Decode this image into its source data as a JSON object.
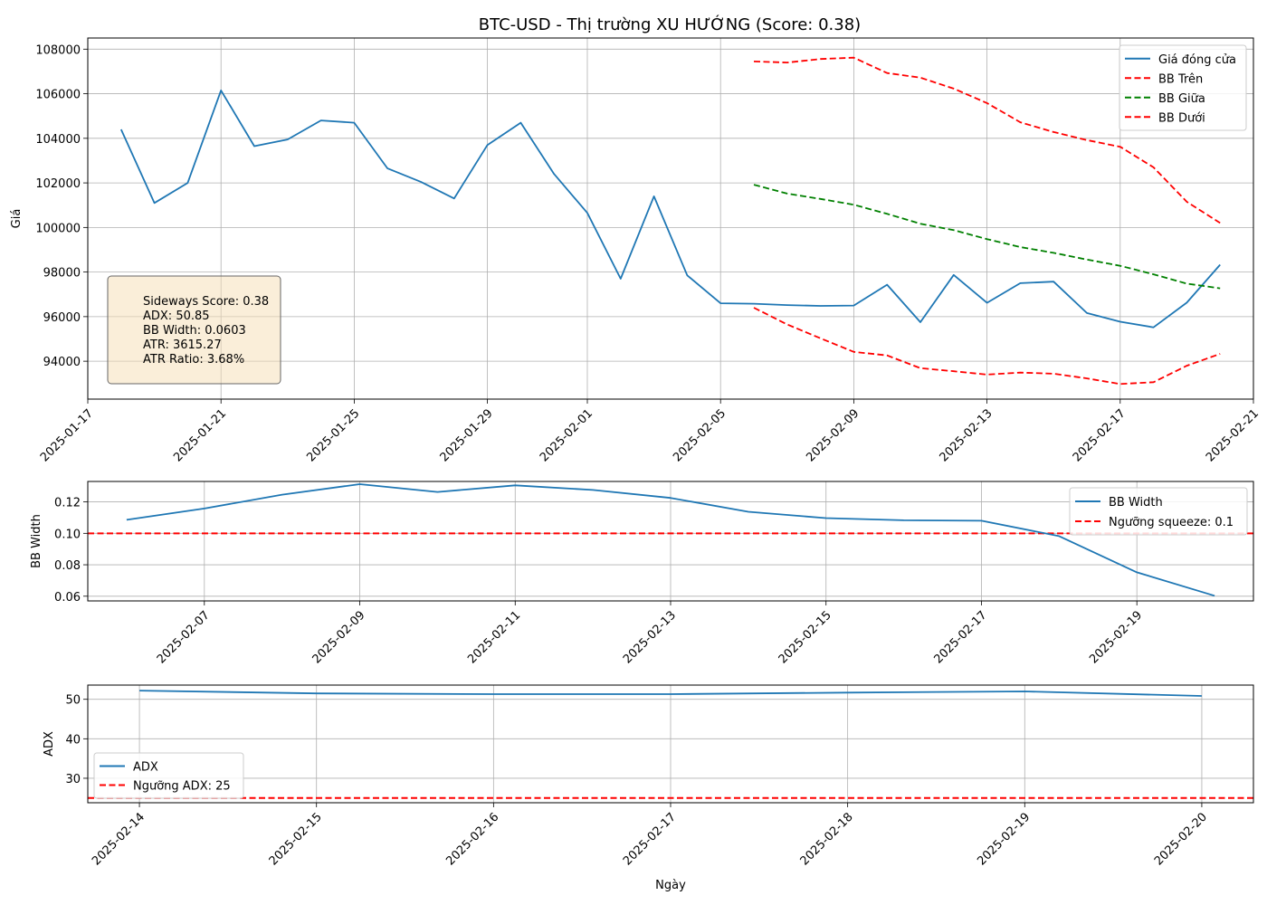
{
  "title": "BTC-USD - Thị trường XU HƯỚNG (Score: 0.38)",
  "colors": {
    "close": "#1f77b4",
    "upper": "#ff0000",
    "middle": "#008000",
    "lower": "#ff0000",
    "threshold": "#ff0000"
  },
  "chart_data": [
    {
      "type": "line",
      "ylabel": "Giá",
      "xlabel": "",
      "ylim": [
        92300,
        108500
      ],
      "xlim": [
        "2025-01-17",
        "2025-02-21"
      ],
      "x_ticks": [
        "2025-01-17",
        "2025-01-21",
        "2025-01-25",
        "2025-01-29",
        "2025-02-01",
        "2025-02-05",
        "2025-02-09",
        "2025-02-13",
        "2025-02-17",
        "2025-02-21"
      ],
      "y_ticks": [
        94000,
        96000,
        98000,
        100000,
        102000,
        104000,
        106000,
        108000
      ],
      "grid": true,
      "legend_position": "top-right",
      "series": [
        {
          "name": "Giá đóng cửa",
          "style": "solid",
          "color": "#1f77b4",
          "x": [
            "2025-01-18",
            "2025-01-19",
            "2025-01-20",
            "2025-01-21",
            "2025-01-22",
            "2025-01-23",
            "2025-01-24",
            "2025-01-25",
            "2025-01-26",
            "2025-01-27",
            "2025-01-28",
            "2025-01-29",
            "2025-01-30",
            "2025-01-31",
            "2025-02-01",
            "2025-02-02",
            "2025-02-03",
            "2025-02-04",
            "2025-02-05",
            "2025-02-06",
            "2025-02-07",
            "2025-02-08",
            "2025-02-09",
            "2025-02-10",
            "2025-02-11",
            "2025-02-12",
            "2025-02-13",
            "2025-02-14",
            "2025-02-15",
            "2025-02-16",
            "2025-02-17",
            "2025-02-18",
            "2025-02-19",
            "2025-02-20"
          ],
          "y": [
            104400,
            101100,
            102000,
            106150,
            103650,
            103950,
            104800,
            104700,
            102650,
            102050,
            101300,
            103700,
            104700,
            102400,
            100650,
            97700,
            101400,
            97850,
            96600,
            96580,
            96520,
            96480,
            96500,
            97430,
            95750,
            97870,
            96620,
            97500,
            97570,
            96160,
            95770,
            95520,
            96630,
            98330
          ]
        },
        {
          "name": "BB Trên",
          "style": "dashed",
          "color": "#ff0000",
          "x": [
            "2025-02-06",
            "2025-02-07",
            "2025-02-08",
            "2025-02-09",
            "2025-02-10",
            "2025-02-11",
            "2025-02-12",
            "2025-02-13",
            "2025-02-14",
            "2025-02-15",
            "2025-02-16",
            "2025-02-17",
            "2025-02-18",
            "2025-02-19",
            "2025-02-20"
          ],
          "y": [
            107450,
            107400,
            107560,
            107620,
            106930,
            106720,
            106230,
            105580,
            104720,
            104280,
            103920,
            103620,
            102700,
            101150,
            100200
          ]
        },
        {
          "name": "BB Giữa",
          "style": "dashed",
          "color": "#008000",
          "x": [
            "2025-02-06",
            "2025-02-07",
            "2025-02-08",
            "2025-02-09",
            "2025-02-10",
            "2025-02-11",
            "2025-02-12",
            "2025-02-13",
            "2025-02-14",
            "2025-02-15",
            "2025-02-16",
            "2025-02-17",
            "2025-02-18",
            "2025-02-19",
            "2025-02-20"
          ],
          "y": [
            101920,
            101520,
            101280,
            101020,
            100610,
            100170,
            99880,
            99480,
            99120,
            98860,
            98560,
            98280,
            97900,
            97480,
            97270
          ]
        },
        {
          "name": "BB Dưới",
          "style": "dashed",
          "color": "#ff0000",
          "x": [
            "2025-02-06",
            "2025-02-07",
            "2025-02-08",
            "2025-02-09",
            "2025-02-10",
            "2025-02-11",
            "2025-02-12",
            "2025-02-13",
            "2025-02-14",
            "2025-02-15",
            "2025-02-16",
            "2025-02-17",
            "2025-02-18",
            "2025-02-19",
            "2025-02-20"
          ],
          "y": [
            96400,
            95650,
            95030,
            94420,
            94260,
            93690,
            93550,
            93400,
            93490,
            93440,
            93230,
            92980,
            93060,
            93800,
            94330
          ]
        }
      ],
      "annotation": [
        "Sideways Score: 0.38",
        "ADX: 50.85",
        "BB Width: 0.0603",
        "ATR: 3615.27",
        "ATR Ratio: 3.68%"
      ]
    },
    {
      "type": "line",
      "ylabel": "BB Width",
      "xlabel": "",
      "ylim": [
        0.057,
        0.133
      ],
      "xlim": [
        "2025-02-05T12:00",
        "2025-02-20T12:00"
      ],
      "x_ticks": [
        "2025-02-07",
        "2025-02-09",
        "2025-02-11",
        "2025-02-13",
        "2025-02-15",
        "2025-02-17",
        "2025-02-19"
      ],
      "y_ticks": [
        0.06,
        0.08,
        0.1,
        0.12
      ],
      "grid": true,
      "legend_position": "top-right",
      "series": [
        {
          "name": "BB Width",
          "style": "solid",
          "color": "#1f77b4",
          "x": [
            "2025-02-06",
            "2025-02-07",
            "2025-02-08",
            "2025-02-09",
            "2025-02-10",
            "2025-02-11",
            "2025-02-12",
            "2025-02-13",
            "2025-02-14",
            "2025-02-15",
            "2025-02-16",
            "2025-02-17",
            "2025-02-18",
            "2025-02-19",
            "2025-02-20"
          ],
          "y": [
            0.1086,
            0.1158,
            0.1246,
            0.1313,
            0.1263,
            0.1305,
            0.1276,
            0.1225,
            0.1137,
            0.1097,
            0.1083,
            0.108,
            0.0982,
            0.0752,
            0.0603
          ]
        }
      ],
      "thresholds": [
        {
          "name": "Ngưỡng squeeze: 0.1",
          "y": 0.1,
          "style": "dashed",
          "color": "#ff0000"
        }
      ]
    },
    {
      "type": "line",
      "ylabel": "ADX",
      "xlabel": "Ngày",
      "ylim": [
        23.8,
        53.6
      ],
      "xlim": [
        "2025-02-13T17:00",
        "2025-02-20T07:00"
      ],
      "x_ticks": [
        "2025-02-14",
        "2025-02-15",
        "2025-02-16",
        "2025-02-17",
        "2025-02-18",
        "2025-02-19",
        "2025-02-20"
      ],
      "y_ticks": [
        30,
        40,
        50
      ],
      "grid": true,
      "legend_position": "bottom-left",
      "series": [
        {
          "name": "ADX",
          "style": "solid",
          "color": "#1f77b4",
          "x": [
            "2025-02-14",
            "2025-02-15",
            "2025-02-16",
            "2025-02-17",
            "2025-02-18",
            "2025-02-19",
            "2025-02-20"
          ],
          "y": [
            52.2,
            51.5,
            51.3,
            51.3,
            51.7,
            52.0,
            50.85
          ]
        }
      ],
      "thresholds": [
        {
          "name": "Ngưỡng ADX: 25",
          "y": 25,
          "style": "dashed",
          "color": "#ff0000"
        }
      ]
    }
  ]
}
